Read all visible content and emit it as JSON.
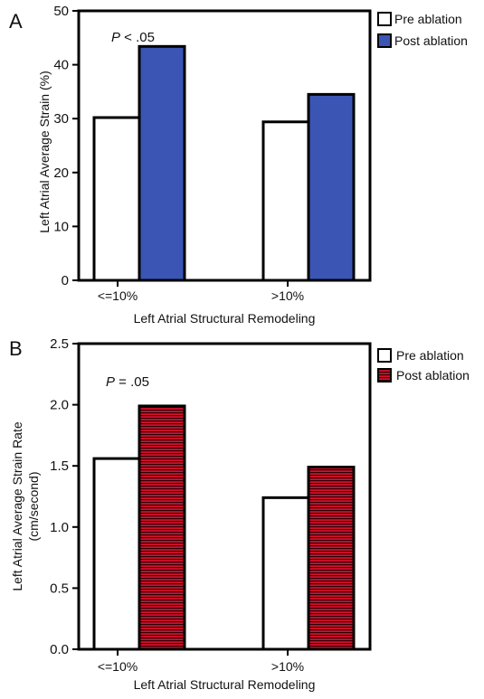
{
  "colors": {
    "pre_fill": "#ffffff",
    "post_fill_a": "#3a55b4",
    "post_fill_b_base": "#d4102a",
    "post_stripe_b": "#2a0208",
    "axis": "#000000"
  },
  "chart_data": [
    {
      "panel_label": "A",
      "type": "bar",
      "categories": [
        "<=10%",
        ">10%"
      ],
      "series": [
        {
          "name": "Pre ablation",
          "values": [
            30.2,
            29.4
          ]
        },
        {
          "name": "Post ablation",
          "values": [
            43.4,
            34.5
          ]
        }
      ],
      "ylim": [
        0,
        50
      ],
      "yticks": [
        0,
        10,
        20,
        30,
        40,
        50
      ],
      "ytick_labels": [
        "0",
        "10",
        "20",
        "30",
        "40",
        "50"
      ],
      "xlabel": "Left Atrial Structural Remodeling",
      "ylabel": "Left Atrial Average Strain (%)",
      "annotation_italic": "P",
      "annotation_rest": " < .05",
      "legend_position": "top-right",
      "grid": false
    },
    {
      "panel_label": "B",
      "type": "bar",
      "categories": [
        "<=10%",
        ">10%"
      ],
      "series": [
        {
          "name": "Pre ablation",
          "values": [
            1.56,
            1.24
          ]
        },
        {
          "name": "Post ablation",
          "values": [
            1.99,
            1.49
          ]
        }
      ],
      "ylim": [
        0,
        2.5
      ],
      "yticks": [
        0,
        0.5,
        1.0,
        1.5,
        2.0,
        2.5
      ],
      "ytick_labels": [
        "0.0",
        "0.5",
        "1.0",
        "1.5",
        "2.0",
        "2.5"
      ],
      "xlabel": "Left Atrial Structural Remodeling",
      "ylabel_line1": "Left Atrial Average Strain Rate",
      "ylabel_line2": "(cm/second)",
      "annotation_italic": "P",
      "annotation_rest": " = .05",
      "legend_position": "top-right",
      "grid": false
    }
  ]
}
